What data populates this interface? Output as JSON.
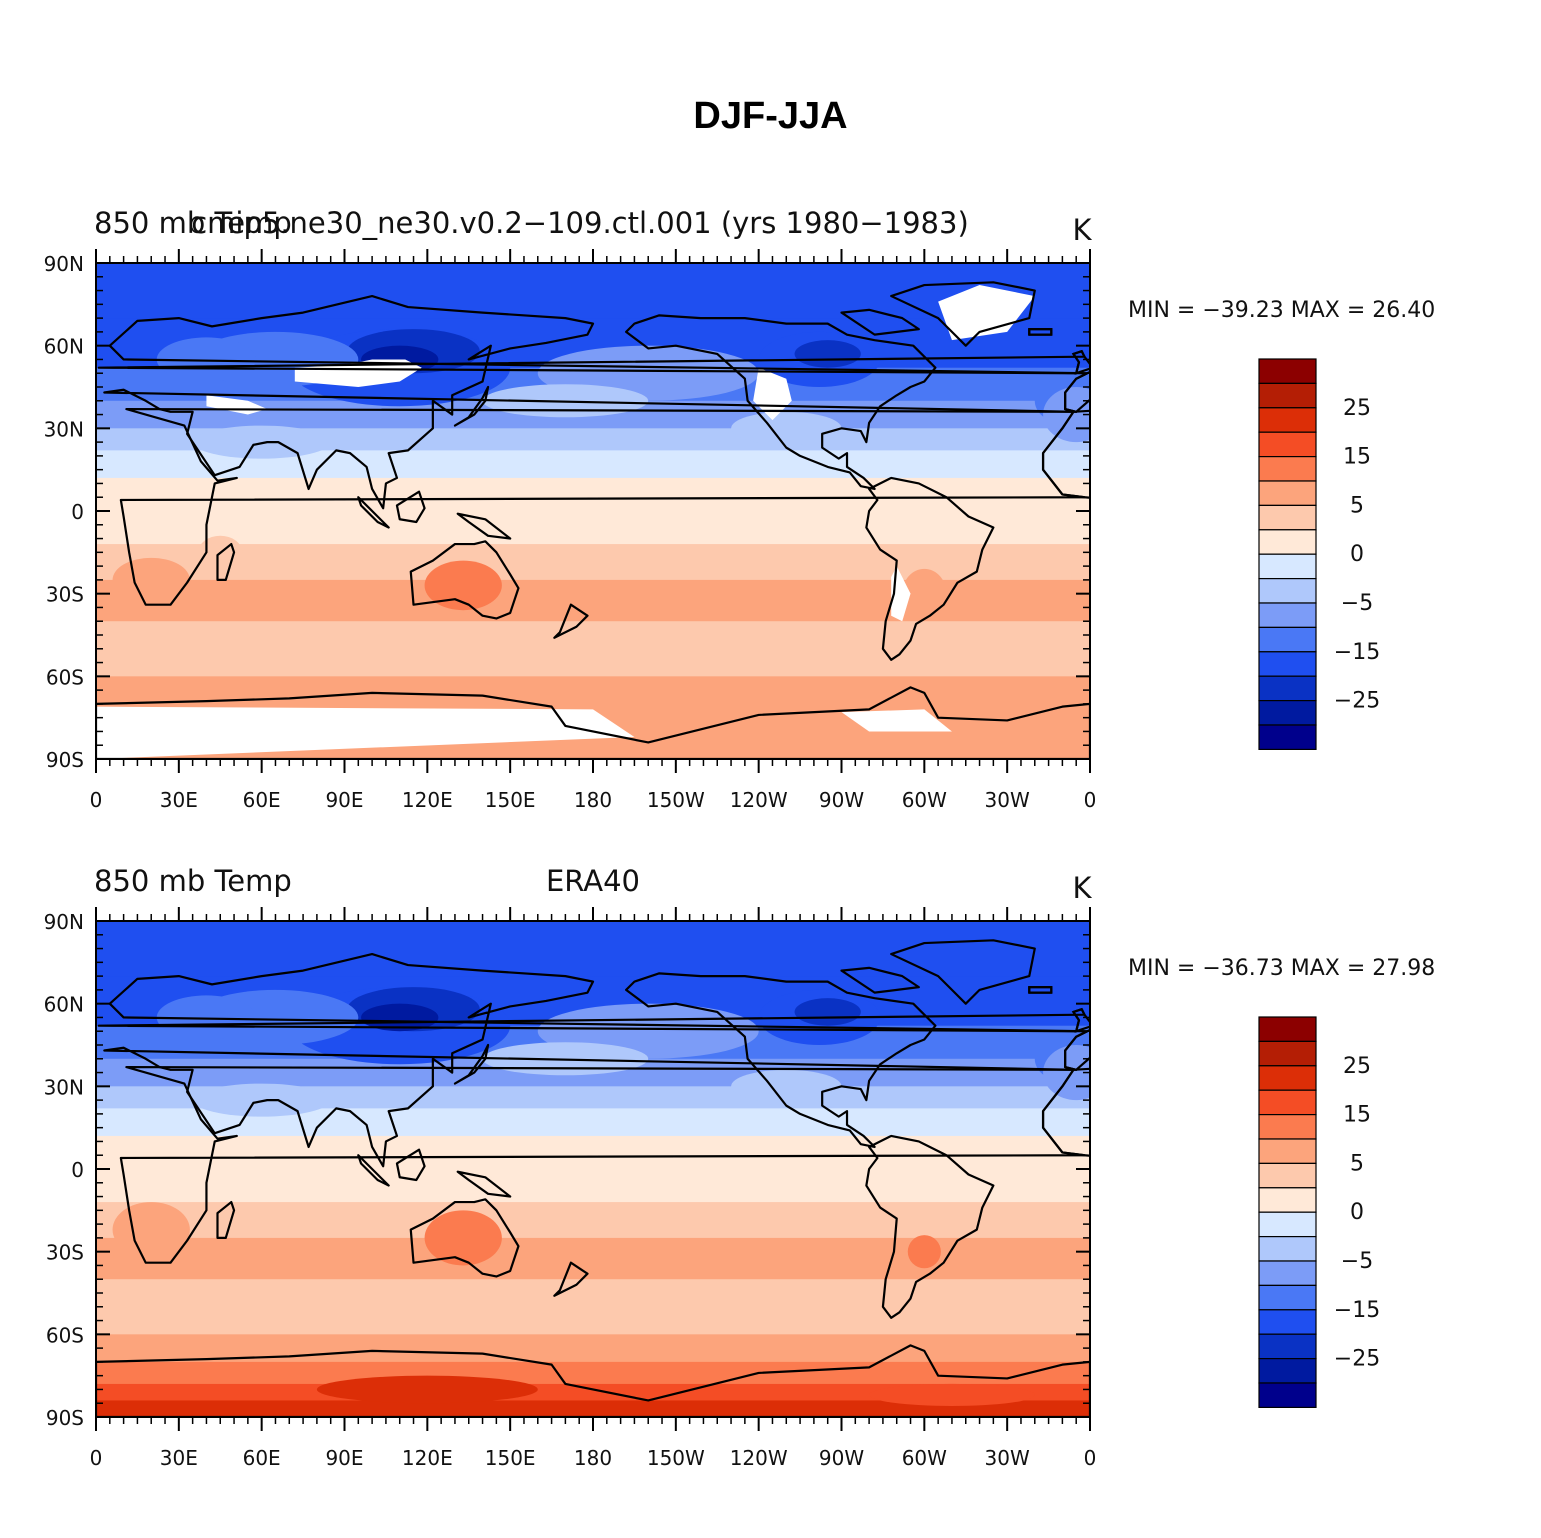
{
  "figure": {
    "title": "DJF-JJA"
  },
  "colors": {
    "levels": [
      "#00008c",
      "#001aa0",
      "#0a32c4",
      "#1f4ff0",
      "#4a78f5",
      "#7c9cf7",
      "#afc8fb",
      "#d7e8ff",
      "#ffe9d8",
      "#fdc9ad",
      "#fca47c",
      "#fb7b4f",
      "#f44d25",
      "#dc2e07",
      "#b41e05",
      "#8c0000"
    ]
  },
  "panels": [
    {
      "id": "model",
      "left_label": "850 mb Temp",
      "center_label": "cmip5.ne30_ne30.v0.2-109.ctl.001 (yrs 1980-1983)",
      "units": "K",
      "stats": "MIN = -39.23 MAX =   26.40",
      "colorbar_labels": [
        "25",
        "15",
        "5",
        "0",
        "-5",
        "-15",
        "-25"
      ],
      "lat_labels": [
        "90N",
        "60N",
        "30N",
        "0",
        "30S",
        "60S",
        "90S"
      ],
      "lon_labels": [
        "0",
        "30E",
        "60E",
        "90E",
        "120E",
        "150E",
        "180",
        "150W",
        "120W",
        "90W",
        "60W",
        "30W",
        "0"
      ]
    },
    {
      "id": "obs",
      "left_label": "850 mb Temp",
      "center_label": "ERA40",
      "units": "K",
      "stats": "MIN = -36.73 MAX =   27.98",
      "colorbar_labels": [
        "25",
        "15",
        "5",
        "0",
        "-5",
        "-15",
        "-25"
      ],
      "lat_labels": [
        "90N",
        "60N",
        "30N",
        "0",
        "30S",
        "60S",
        "90S"
      ],
      "lon_labels": [
        "0",
        "30E",
        "60E",
        "90E",
        "120E",
        "150E",
        "180",
        "150W",
        "120W",
        "90W",
        "60W",
        "30W",
        "0"
      ]
    }
  ]
}
